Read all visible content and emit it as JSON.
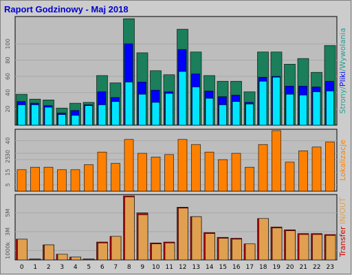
{
  "title": "Raport Godzinowy -  Maj 2018",
  "colors": {
    "background": "#cccccc",
    "plot_bg": "#bdbdbd",
    "title": "#0000cc",
    "pages": "#1a7f5a",
    "files": "#0000ff",
    "hits": "#00e5ff",
    "locations": "#ff8000",
    "transfer_in": "#e0a050",
    "transfer_out": "#cc0000",
    "border": "#000000",
    "grid": "#a8a8a8"
  },
  "chart_data": [
    {
      "type": "bar",
      "panel": "strony-pliki-wywolania",
      "right_label_parts": [
        {
          "text": "Strony",
          "color": "#2a9d8f"
        },
        {
          "text": "/",
          "color": "#2a9d8f"
        },
        {
          "text": "Pliki",
          "color": "#0000ff"
        },
        {
          "text": "/",
          "color": "#2a9d8f"
        },
        {
          "text": "Wywolania",
          "color": "#2a9d8f"
        }
      ],
      "y_ticks": [
        "20",
        "40",
        "60",
        "80",
        "100"
      ],
      "ylim": [
        0,
        132
      ],
      "categories": [
        "0",
        "1",
        "2",
        "3",
        "4",
        "5",
        "6",
        "7",
        "8",
        "9",
        "10",
        "11",
        "12",
        "13",
        "14",
        "15",
        "16",
        "17",
        "18",
        "19",
        "20",
        "21",
        "22",
        "23"
      ],
      "series": [
        {
          "key": "pages",
          "values": [
            38,
            32,
            31,
            21,
            27,
            28,
            61,
            52,
            131,
            89,
            67,
            62,
            118,
            90,
            61,
            54,
            54,
            41,
            90,
            90,
            75,
            82,
            65,
            98
          ]
        },
        {
          "key": "files",
          "values": [
            29,
            27,
            24,
            15,
            18,
            25,
            41,
            34,
            100,
            53,
            43,
            41,
            93,
            63,
            42,
            35,
            37,
            28,
            59,
            60,
            48,
            48,
            47,
            54
          ]
        },
        {
          "key": "hits",
          "values": [
            25,
            25,
            22,
            13,
            12,
            24,
            25,
            29,
            53,
            38,
            28,
            39,
            66,
            47,
            33,
            25,
            29,
            26,
            54,
            59,
            38,
            37,
            41,
            42
          ]
        }
      ]
    },
    {
      "type": "bar",
      "panel": "lokalizacje",
      "right_label": "Lokalizacje",
      "y_ticks": [
        "5",
        "15",
        "25",
        "30",
        "40"
      ],
      "ylim": [
        0,
        48
      ],
      "categories": [
        "0",
        "1",
        "2",
        "3",
        "4",
        "5",
        "6",
        "7",
        "8",
        "9",
        "10",
        "11",
        "12",
        "13",
        "14",
        "15",
        "16",
        "17",
        "18",
        "19",
        "20",
        "21",
        "22",
        "23"
      ],
      "series": [
        {
          "key": "locations",
          "values": [
            17,
            19,
            19,
            17,
            17,
            21,
            31,
            22,
            41,
            30,
            27,
            29,
            41,
            37,
            31,
            25,
            30,
            19,
            37,
            48,
            23,
            32,
            35,
            39
          ]
        }
      ]
    },
    {
      "type": "bar",
      "panel": "transfer",
      "right_label_parts": [
        {
          "text": "Transfer",
          "color": "#cc0000"
        },
        {
          "text": " IN",
          "color": "#e0a050"
        },
        {
          "text": "/",
          "color": "#e0a050"
        },
        {
          "text": "OUT",
          "color": "#e0a050"
        }
      ],
      "y_ticks": [
        "1000k",
        "3M",
        "5M"
      ],
      "ylim": [
        0,
        6.8
      ],
      "categories": [
        "0",
        "1",
        "2",
        "3",
        "4",
        "5",
        "6",
        "7",
        "8",
        "9",
        "10",
        "11",
        "12",
        "13",
        "14",
        "15",
        "16",
        "17",
        "18",
        "19",
        "20",
        "21",
        "22",
        "23"
      ],
      "series": [
        {
          "key": "transfer_out",
          "values": [
            2.2,
            0.1,
            1.6,
            0.6,
            0.3,
            0.1,
            1.9,
            2.5,
            6.8,
            5.0,
            1.8,
            1.9,
            5.6,
            4.6,
            2.9,
            2.4,
            2.3,
            1.7,
            4.4,
            3.5,
            3.2,
            2.8,
            2.8,
            2.7
          ]
        },
        {
          "key": "transfer_in",
          "values": [
            2.2,
            0.0,
            1.6,
            0.6,
            0.3,
            0.0,
            1.8,
            2.5,
            6.7,
            4.8,
            1.7,
            1.8,
            5.5,
            4.6,
            2.8,
            2.3,
            2.2,
            1.7,
            4.4,
            3.4,
            3.1,
            2.7,
            2.7,
            2.6
          ]
        }
      ]
    }
  ]
}
